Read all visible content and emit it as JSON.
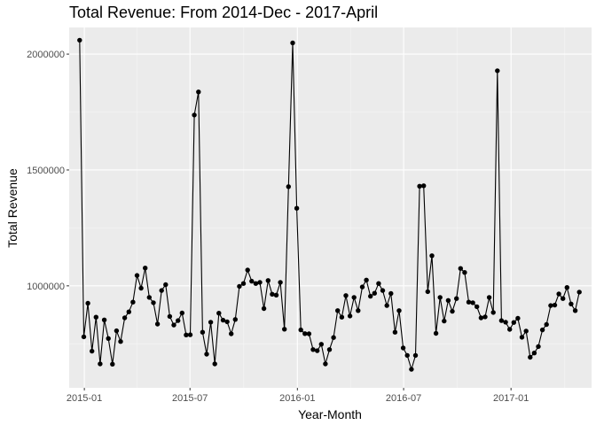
{
  "chart_data": {
    "type": "line",
    "title": "Total Revenue: From 2014-Dec - 2017-April",
    "xlabel": "Year-Month",
    "ylabel": "Total Revenue",
    "x_start": "2014-12-24",
    "x_end": "2017-04-28",
    "xlim": [
      "2014-12-06",
      "2017-05-19"
    ],
    "ylim": [
      560000,
      2115000
    ],
    "x_ticks": [
      {
        "date": "2015-01-01",
        "label": "2015-01"
      },
      {
        "date": "2015-07-01",
        "label": "2015-07"
      },
      {
        "date": "2016-01-01",
        "label": "2016-01"
      },
      {
        "date": "2016-07-01",
        "label": "2016-07"
      },
      {
        "date": "2017-01-01",
        "label": "2017-01"
      }
    ],
    "y_ticks": [
      {
        "value": 1000000,
        "label": "1000000"
      },
      {
        "value": 1500000,
        "label": "1500000"
      },
      {
        "value": 2000000,
        "label": "2000000"
      }
    ],
    "grid": true,
    "point_color": "#000000",
    "line_color": "#000000",
    "panel_background": "#ebebeb",
    "grid_major_color": "#ffffff",
    "values": [
      2060000,
      780000,
      925000,
      718000,
      865000,
      663000,
      853000,
      773000,
      662000,
      806000,
      760000,
      862000,
      888000,
      930000,
      1045000,
      990000,
      1077000,
      950000,
      927000,
      835000,
      980000,
      1005000,
      868000,
      831000,
      850000,
      883000,
      788000,
      789000,
      1737000,
      1837000,
      800000,
      705000,
      843000,
      663000,
      882000,
      852000,
      845000,
      793000,
      855000,
      998000,
      1010000,
      1068000,
      1020000,
      1010000,
      1015000,
      902000,
      1023000,
      964000,
      960000,
      1015000,
      813000,
      1428000,
      2048000,
      1335000,
      810000,
      794000,
      793000,
      725000,
      720000,
      748000,
      663000,
      725000,
      777000,
      893000,
      865000,
      958000,
      870000,
      950000,
      893000,
      995000,
      1025000,
      955000,
      968000,
      1010000,
      980000,
      915000,
      967000,
      800000,
      893000,
      732000,
      700000,
      640000,
      700000,
      1430000,
      1432000,
      975000,
      1130000,
      795000,
      950000,
      848000,
      937000,
      890000,
      945000,
      1075000,
      1058000,
      930000,
      927000,
      910000,
      862000,
      866000,
      950000,
      885000,
      1928000,
      850000,
      843000,
      812000,
      842000,
      860000,
      778000,
      805000,
      692000,
      710000,
      738000,
      810000,
      833000,
      915000,
      917000,
      965000,
      945000,
      993000,
      922000,
      893000,
      973000
    ]
  }
}
